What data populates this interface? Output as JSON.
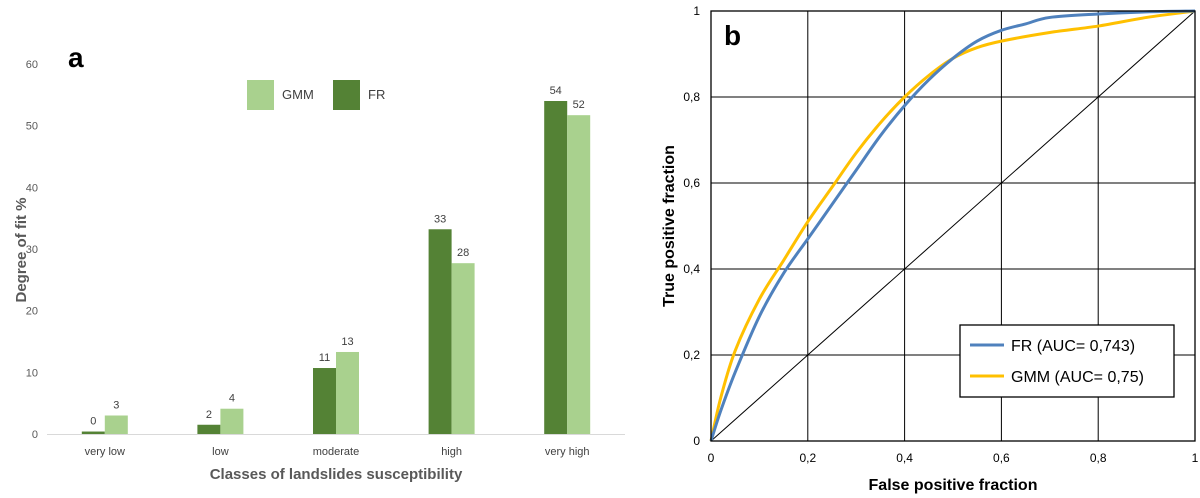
{
  "chart_data": [
    {
      "type": "bar",
      "panel_label": "a",
      "xlabel": "Classes of landslides susceptibility",
      "ylabel": "Degree of fit %",
      "ylim": [
        0,
        60
      ],
      "yticks": [
        0,
        10,
        20,
        30,
        40,
        50,
        60
      ],
      "categories": [
        "very low",
        "low",
        "moderate",
        "high",
        "very high"
      ],
      "series": [
        {
          "name": "FR",
          "color": "#548235",
          "values": [
            0.4,
            1.5,
            10.7,
            33.2,
            54.0
          ],
          "labels": [
            "0",
            "2",
            "11",
            "33",
            "54"
          ]
        },
        {
          "name": "GMM",
          "color": "#a9d18e",
          "values": [
            3.0,
            4.1,
            13.3,
            27.7,
            51.7
          ],
          "labels": [
            "3",
            "4",
            "13",
            "28",
            "52"
          ]
        }
      ],
      "legend": {
        "placement": "top",
        "order": [
          "GMM",
          "FR"
        ]
      },
      "grid": false
    },
    {
      "type": "line",
      "panel_label": "b",
      "xlabel": "False positive fraction",
      "ylabel": "True positive fraction",
      "xlim": [
        0,
        1
      ],
      "ylim": [
        0,
        1
      ],
      "ticks": [
        0,
        0.2,
        0.4,
        0.6,
        0.8,
        1
      ],
      "tick_labels": [
        "0",
        "0,2",
        "0,4",
        "0,6",
        "0,8",
        "1"
      ],
      "grid": true,
      "series": [
        {
          "name": "FR (AUC= 0,743)",
          "color": "#4f81bd",
          "x": [
            0,
            0.02,
            0.05,
            0.1,
            0.15,
            0.2,
            0.25,
            0.3,
            0.35,
            0.4,
            0.45,
            0.5,
            0.55,
            0.6,
            0.65,
            0.7,
            0.8,
            0.9,
            1.0
          ],
          "y": [
            0,
            0.07,
            0.16,
            0.29,
            0.39,
            0.47,
            0.55,
            0.63,
            0.71,
            0.78,
            0.84,
            0.89,
            0.93,
            0.955,
            0.97,
            0.985,
            0.993,
            0.998,
            1.0
          ]
        },
        {
          "name": "GMM (AUC= 0,75)",
          "color": "#ffc000",
          "x": [
            0,
            0.02,
            0.05,
            0.1,
            0.15,
            0.2,
            0.25,
            0.3,
            0.35,
            0.4,
            0.45,
            0.5,
            0.55,
            0.6,
            0.7,
            0.8,
            0.9,
            1.0
          ],
          "y": [
            0,
            0.1,
            0.21,
            0.33,
            0.42,
            0.51,
            0.59,
            0.67,
            0.74,
            0.8,
            0.85,
            0.89,
            0.915,
            0.93,
            0.95,
            0.965,
            0.985,
            1.0
          ]
        },
        {
          "name": "",
          "color": "#000000",
          "x": [
            0,
            1
          ],
          "y": [
            0,
            1
          ]
        }
      ],
      "legend": {
        "placement": "bottom-right"
      }
    }
  ]
}
